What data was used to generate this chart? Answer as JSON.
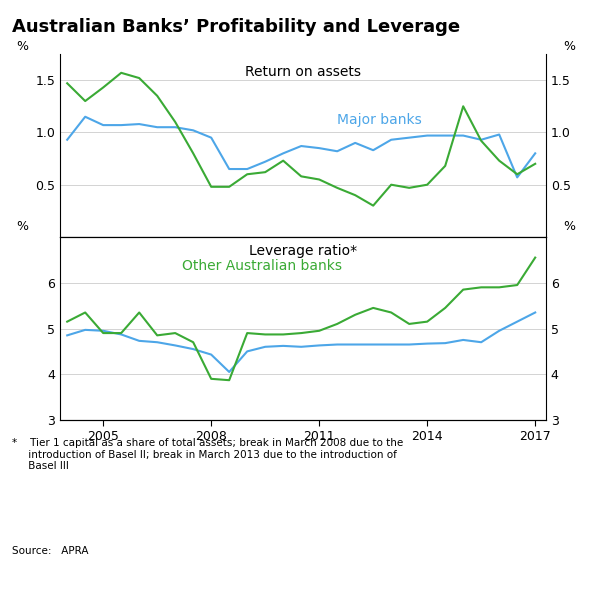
{
  "title": "Australian Banks’ Profitability and Leverage",
  "top_title": "Return on assets",
  "bottom_title": "Leverage ratio*",
  "label_major": "Major banks",
  "label_other": "Other Australian banks",
  "color_major": "#4da6e8",
  "color_other": "#3aaa35",
  "footnote": "*    Tier 1 capital as a share of total assets; break in March 2008 due to the\n     introduction of Basel II; break in March 2013 due to the introduction of\n     Basel III",
  "source": "Source:   APRA",
  "roa_years": [
    2004.0,
    2004.5,
    2005.0,
    2005.5,
    2006.0,
    2006.5,
    2007.0,
    2007.5,
    2008.0,
    2008.5,
    2009.0,
    2009.5,
    2010.0,
    2010.5,
    2011.0,
    2011.5,
    2012.0,
    2012.5,
    2013.0,
    2013.5,
    2014.0,
    2014.5,
    2015.0,
    2015.5,
    2016.0,
    2016.5,
    2017.0
  ],
  "roa_major": [
    0.93,
    1.15,
    1.07,
    1.07,
    1.08,
    1.05,
    1.05,
    1.02,
    0.95,
    0.65,
    0.65,
    0.72,
    0.8,
    0.87,
    0.85,
    0.82,
    0.9,
    0.83,
    0.93,
    0.95,
    0.97,
    0.97,
    0.97,
    0.93,
    0.98,
    0.57,
    0.8
  ],
  "roa_other": [
    1.47,
    1.3,
    1.43,
    1.57,
    1.52,
    1.35,
    1.1,
    0.8,
    0.48,
    0.48,
    0.6,
    0.62,
    0.73,
    0.58,
    0.55,
    0.47,
    0.4,
    0.3,
    0.5,
    0.47,
    0.5,
    0.68,
    1.25,
    0.92,
    0.73,
    0.6,
    0.7
  ],
  "lev_years": [
    2004.0,
    2004.5,
    2005.0,
    2005.5,
    2006.0,
    2006.5,
    2007.0,
    2007.5,
    2008.0,
    2008.5,
    2009.0,
    2009.5,
    2010.0,
    2010.5,
    2011.0,
    2011.5,
    2012.0,
    2012.5,
    2013.0,
    2013.5,
    2014.0,
    2014.5,
    2015.0,
    2015.5,
    2016.0,
    2016.5,
    2017.0
  ],
  "lev_major": [
    4.85,
    4.97,
    4.95,
    4.87,
    4.73,
    4.7,
    4.63,
    4.55,
    4.43,
    4.05,
    4.5,
    4.6,
    4.62,
    4.6,
    4.63,
    4.65,
    4.65,
    4.65,
    4.65,
    4.65,
    4.67,
    4.68,
    4.75,
    4.7,
    4.95,
    5.15,
    5.35
  ],
  "lev_other": [
    5.15,
    5.35,
    4.9,
    4.9,
    5.35,
    4.85,
    4.9,
    4.7,
    3.9,
    3.87,
    4.9,
    4.87,
    4.87,
    4.9,
    4.95,
    5.1,
    5.3,
    5.45,
    5.35,
    5.1,
    5.15,
    5.45,
    5.85,
    5.9,
    5.9,
    5.95,
    6.55
  ],
  "roa_ylim": [
    0.0,
    1.75
  ],
  "roa_yticks": [
    0.5,
    1.0,
    1.5
  ],
  "lev_ylim": [
    3.0,
    7.0
  ],
  "lev_yticks": [
    3,
    4,
    5,
    6
  ],
  "xlim": [
    2003.8,
    2017.3
  ],
  "xticks": [
    2005,
    2008,
    2011,
    2014,
    2017
  ]
}
